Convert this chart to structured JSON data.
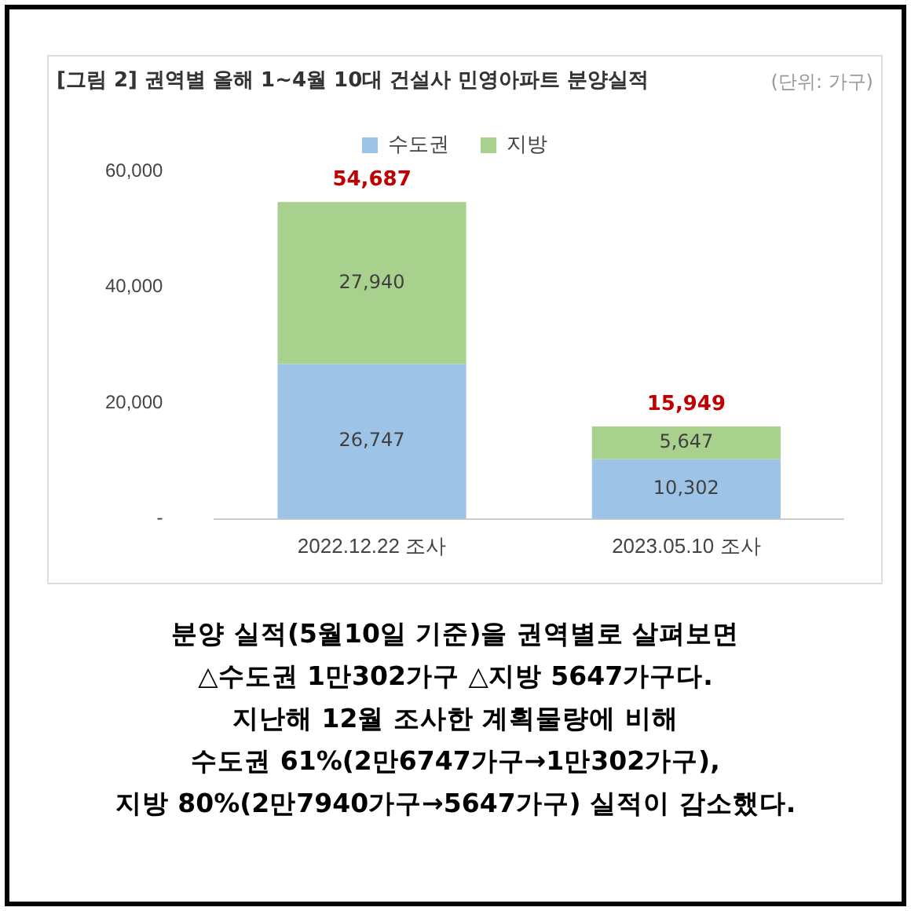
{
  "chart_data": {
    "type": "bar",
    "title": "[그림 2] 권역별 올해 1~4월 10대 건설사 민영아파트 분양실적",
    "categories": [
      "2022.12.22 조사",
      "2023.05.10 조사"
    ],
    "series": [
      {
        "name": "수도권",
        "color": "#9dc3e6",
        "values": [
          26747,
          10302
        ],
        "value_labels": [
          "26,747",
          "10,302"
        ]
      },
      {
        "name": "지방",
        "color": "#a9d18e",
        "values": [
          27940,
          5647
        ],
        "value_labels": [
          "27,940",
          "5,647"
        ]
      }
    ],
    "stacked": true,
    "ylim": [
      0,
      60000
    ],
    "yticks": [
      {
        "value": 0,
        "label": "-"
      },
      {
        "value": 20000,
        "label": "20,000"
      },
      {
        "value": 40000,
        "label": "40,000"
      },
      {
        "value": 60000,
        "label": "60,000"
      }
    ],
    "grid": false,
    "legend": "top",
    "totals": [
      "54,687",
      "15,949"
    ],
    "annotations": [
      "(단위: 가구)",
      "분양 실적(5월10일 기준)을 권역별로 살펴보면",
      "△수도권 1만302가구 △지방 5647가구다.",
      "지난해 12월 조사한 계획물량에 비해",
      "수도권 61%(2만6747가구→1만302가구),",
      "지방 80%(2만7940가구→5647가구) 실적이 감소했다."
    ]
  }
}
